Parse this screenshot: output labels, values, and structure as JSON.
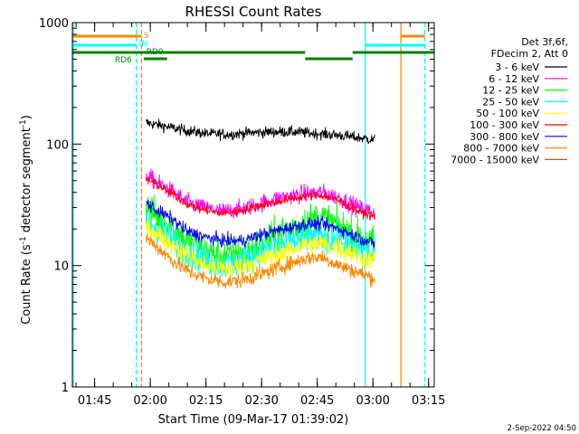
{
  "chart_data": {
    "type": "line",
    "title": "RHESSI Count Rates",
    "xlabel": "Start Time (09-Mar-17 01:39:02)",
    "ylabel_main": "Count Rate (s",
    "ylabel_sup": "-1",
    "ylabel_tail": " detector segment",
    "ylabel_sup2": "-1",
    "ylabel_close": ")",
    "y_scale": "log",
    "ylim": [
      1,
      1000
    ],
    "xlim_minutes": [
      -0.0333,
      97.5
    ],
    "y_ticks": [
      {
        "value": 1,
        "label": "1"
      },
      {
        "value": 10,
        "label": "10"
      },
      {
        "value": 100,
        "label": "100"
      },
      {
        "value": 1000,
        "label": "1000"
      }
    ],
    "x_ticks": [
      {
        "value": 5.97,
        "label": "01:45"
      },
      {
        "value": 20.97,
        "label": "02:00"
      },
      {
        "value": 35.97,
        "label": "02:15"
      },
      {
        "value": 50.97,
        "label": "02:30"
      },
      {
        "value": 65.97,
        "label": "02:45"
      },
      {
        "value": 80.97,
        "label": "03:00"
      },
      {
        "value": 95.97,
        "label": "03:15"
      }
    ],
    "legend_header": [
      "Det 3f,6f,",
      "FDecim 2, Att 0"
    ],
    "legend_position": "right",
    "series": [
      {
        "name": "3 - 6 keV",
        "color": "#000000",
        "points": [
          [
            19.8,
            150
          ],
          [
            24,
            142
          ],
          [
            30,
            130
          ],
          [
            36,
            122
          ],
          [
            42,
            120
          ],
          [
            48,
            124
          ],
          [
            54,
            126
          ],
          [
            60,
            126
          ],
          [
            66,
            122
          ],
          [
            72,
            118
          ],
          [
            78,
            112
          ],
          [
            81.5,
            108
          ]
        ],
        "noise": 0.05
      },
      {
        "name": "6 - 12 keV",
        "color": "#ff00ff",
        "points": [
          [
            19.8,
            55
          ],
          [
            23,
            48
          ],
          [
            27,
            40
          ],
          [
            31,
            33
          ],
          [
            35,
            30
          ],
          [
            40,
            28
          ],
          [
            45,
            29
          ],
          [
            50,
            32
          ],
          [
            56,
            36
          ],
          [
            62,
            39
          ],
          [
            67,
            40
          ],
          [
            72,
            36
          ],
          [
            77,
            30
          ],
          [
            81.5,
            27
          ]
        ],
        "noise": 0.08
      },
      {
        "name": "12 - 25 keV",
        "color": "#00ff00",
        "points": [
          [
            19.8,
            30
          ],
          [
            23,
            25
          ],
          [
            27,
            20
          ],
          [
            31,
            16
          ],
          [
            36,
            13
          ],
          [
            41,
            12
          ],
          [
            46,
            13
          ],
          [
            51,
            15
          ],
          [
            57,
            19
          ],
          [
            63,
            23
          ],
          [
            67,
            25
          ],
          [
            72,
            21
          ],
          [
            77,
            17
          ],
          [
            81.5,
            15
          ]
        ],
        "noise": 0.16
      },
      {
        "name": "25 - 50 keV",
        "color": "#00ffff",
        "points": [
          [
            19.8,
            24
          ],
          [
            23,
            20
          ],
          [
            27,
            16
          ],
          [
            31,
            13
          ],
          [
            36,
            11
          ],
          [
            41,
            10
          ],
          [
            46,
            11
          ],
          [
            51,
            13
          ],
          [
            57,
            15
          ],
          [
            63,
            17
          ],
          [
            67,
            18
          ],
          [
            72,
            16
          ],
          [
            77,
            14
          ],
          [
            81.5,
            12
          ]
        ],
        "noise": 0.14
      },
      {
        "name": "50 - 100 keV",
        "color": "#ffff00",
        "points": [
          [
            19.8,
            21
          ],
          [
            23,
            18
          ],
          [
            27,
            15
          ],
          [
            31,
            12
          ],
          [
            36,
            10
          ],
          [
            41,
            9.3
          ],
          [
            46,
            10
          ],
          [
            51,
            11
          ],
          [
            57,
            13
          ],
          [
            63,
            15
          ],
          [
            67,
            15
          ],
          [
            72,
            14
          ],
          [
            77,
            12
          ],
          [
            81.5,
            11
          ]
        ],
        "noise": 0.1
      },
      {
        "name": "100 - 300 keV",
        "color": "#ff0000",
        "points": [
          [
            19.8,
            52
          ],
          [
            23,
            46
          ],
          [
            27,
            39
          ],
          [
            31,
            32
          ],
          [
            35,
            29
          ],
          [
            40,
            27
          ],
          [
            45,
            28
          ],
          [
            50,
            31
          ],
          [
            56,
            34
          ],
          [
            62,
            37
          ],
          [
            67,
            38
          ],
          [
            72,
            34
          ],
          [
            77,
            28
          ],
          [
            81.5,
            25
          ]
        ],
        "noise": 0.04
      },
      {
        "name": "300 - 800 keV",
        "color": "#0000ff",
        "points": [
          [
            19.8,
            33
          ],
          [
            23,
            28
          ],
          [
            27,
            24
          ],
          [
            31,
            19
          ],
          [
            36,
            17
          ],
          [
            41,
            16
          ],
          [
            46,
            16
          ],
          [
            51,
            18
          ],
          [
            57,
            20
          ],
          [
            63,
            22
          ],
          [
            67,
            22
          ],
          [
            72,
            20
          ],
          [
            77,
            17
          ],
          [
            81.5,
            15
          ]
        ],
        "noise": 0.06
      },
      {
        "name": "800 - 7000 keV",
        "color": "#ff8800",
        "points": [
          [
            19.8,
            17
          ],
          [
            23,
            14
          ],
          [
            27,
            11
          ],
          [
            31,
            9
          ],
          [
            36,
            7.8
          ],
          [
            41,
            7.3
          ],
          [
            46,
            7.6
          ],
          [
            51,
            8.5
          ],
          [
            57,
            10
          ],
          [
            63,
            11.5
          ],
          [
            67,
            11.8
          ],
          [
            72,
            10
          ],
          [
            77,
            8.8
          ],
          [
            81.5,
            7.8
          ]
        ],
        "noise": 0.07
      },
      {
        "name": "7000 - 15000 keV",
        "color": "#c06000",
        "points": [],
        "noise": 0
      }
    ],
    "vertical_lines": [
      {
        "x": 0.2,
        "color": "#00ffff",
        "style": "solid"
      },
      {
        "x": 17.2,
        "color": "#00ffff",
        "style": "dashed"
      },
      {
        "x": 18.6,
        "color": "#ff8800",
        "style": "dashed"
      },
      {
        "x": 78.9,
        "color": "#00ffff",
        "style": "solid"
      },
      {
        "x": 88.5,
        "color": "#ff8800",
        "style": "solid"
      },
      {
        "x": 95.0,
        "color": "#00ffff",
        "style": "dashed"
      }
    ],
    "flag_bars": [
      {
        "x0": -0.03,
        "x1": 18.6,
        "y": 1.5,
        "color": "#ff8800"
      },
      {
        "x0": 88.5,
        "x1": 95.0,
        "y": 1.5,
        "color": "#ff8800"
      },
      {
        "x0": -0.03,
        "x1": 17.2,
        "y": 2.5,
        "color": "#00ffff"
      },
      {
        "x0": 78.9,
        "x1": 95.0,
        "y": 2.5,
        "color": "#00ffff"
      },
      {
        "x0": -0.03,
        "x1": 19.2,
        "y": 3.3,
        "color": "#008000"
      },
      {
        "x0": 19.2,
        "x1": 62.7,
        "y": 3.3,
        "color": "#008000"
      },
      {
        "x0": 75.5,
        "x1": 97.4,
        "y": 3.3,
        "color": "#008000"
      },
      {
        "x0": 19.2,
        "x1": 25.5,
        "y": 4.0,
        "color": "#008000"
      },
      {
        "x0": 62.7,
        "x1": 75.5,
        "y": 4.0,
        "color": "#008000"
      }
    ],
    "flag_labels": [
      {
        "text": "S",
        "x": 19.2,
        "color": "#ff8800"
      },
      {
        "text": "IN",
        "x": 17.9,
        "color": "#00ffff"
      },
      {
        "text": "RD0",
        "x": 19.9,
        "color": "#008000"
      },
      {
        "text": "RD6",
        "x": 11.4,
        "color": "#008000"
      }
    ],
    "footer_date": "2-Sep-2022 04:50"
  }
}
